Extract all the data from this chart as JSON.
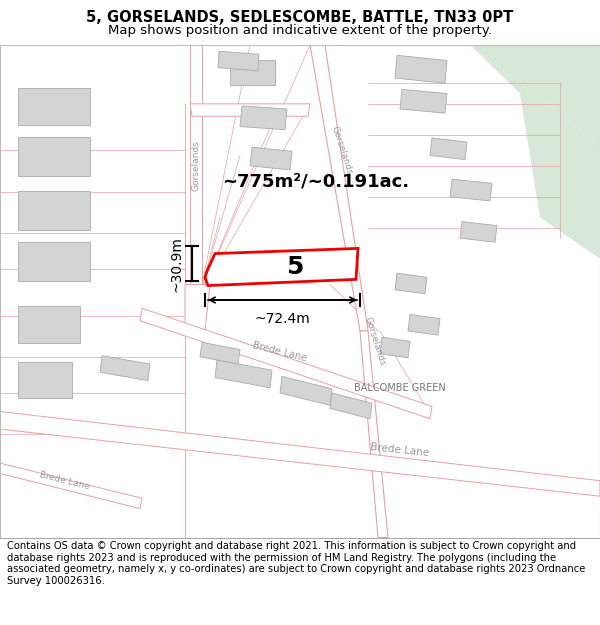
{
  "title": "5, GORSELANDS, SEDLESCOMBE, BATTLE, TN33 0PT",
  "subtitle": "Map shows position and indicative extent of the property.",
  "footer": "Contains OS data © Crown copyright and database right 2021. This information is subject to Crown copyright and database rights 2023 and is reproduced with the permission of HM Land Registry. The polygons (including the associated geometry, namely x, y co-ordinates) are subject to Crown copyright and database rights 2023 Ordnance Survey 100026316.",
  "map_bg": "#ffffff",
  "road_line_color": "#e8a0a0",
  "road_fill_color": "#ffffff",
  "road_area_fill": "#f7eded",
  "building_color": "#d4d4d4",
  "building_stroke": "#aaaaaa",
  "green_area": "#d8e8d8",
  "plot_color": "#ee0000",
  "label_5": "5",
  "area_label": "~775m²/~0.191ac.",
  "dim_width": "~72.4m",
  "dim_height": "~30.9m",
  "title_fontsize": 10.5,
  "subtitle_fontsize": 9.5,
  "footer_fontsize": 7.2,
  "map_label_color": "#999999",
  "map_label_color2": "#777777"
}
